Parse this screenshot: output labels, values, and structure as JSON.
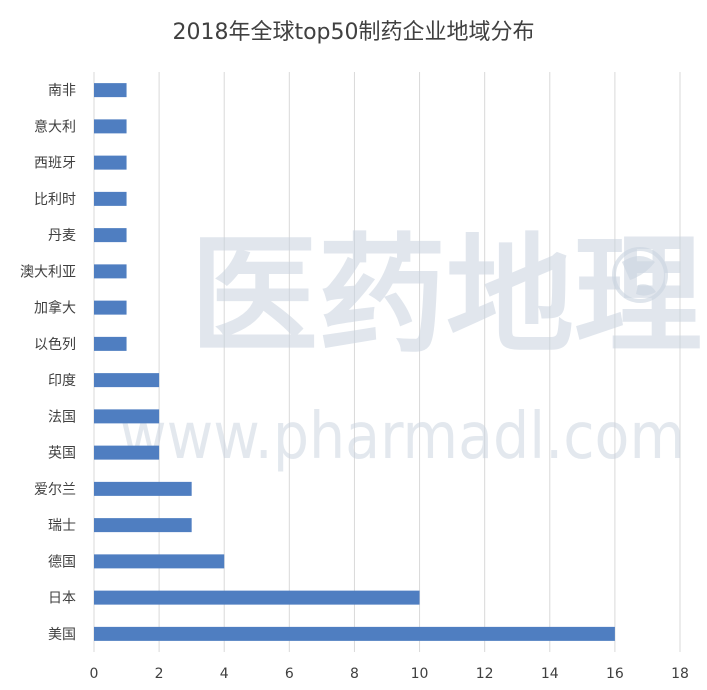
{
  "chart_data": {
    "type": "bar",
    "orientation": "horizontal",
    "title": "2018年全球top50制药企业地域分布",
    "categories": [
      "美国",
      "日本",
      "德国",
      "瑞士",
      "爱尔兰",
      "英国",
      "法国",
      "印度",
      "以色列",
      "加拿大",
      "澳大利亚",
      "丹麦",
      "比利时",
      "西班牙",
      "意大利",
      "南非"
    ],
    "values": [
      16,
      10,
      4,
      3,
      3,
      2,
      2,
      2,
      1,
      1,
      1,
      1,
      1,
      1,
      1,
      1
    ],
    "xticks": [
      0,
      2,
      4,
      6,
      8,
      10,
      12,
      14,
      16,
      18
    ],
    "xlim": [
      0,
      18
    ],
    "grid": "vertical",
    "legend": "none",
    "bar_color": "#4f7ec1"
  },
  "watermark": {
    "main_text": "医药地理",
    "url_text": "www.pharmadl.com",
    "icon": "globe-icon",
    "color": "#c9d3df"
  }
}
